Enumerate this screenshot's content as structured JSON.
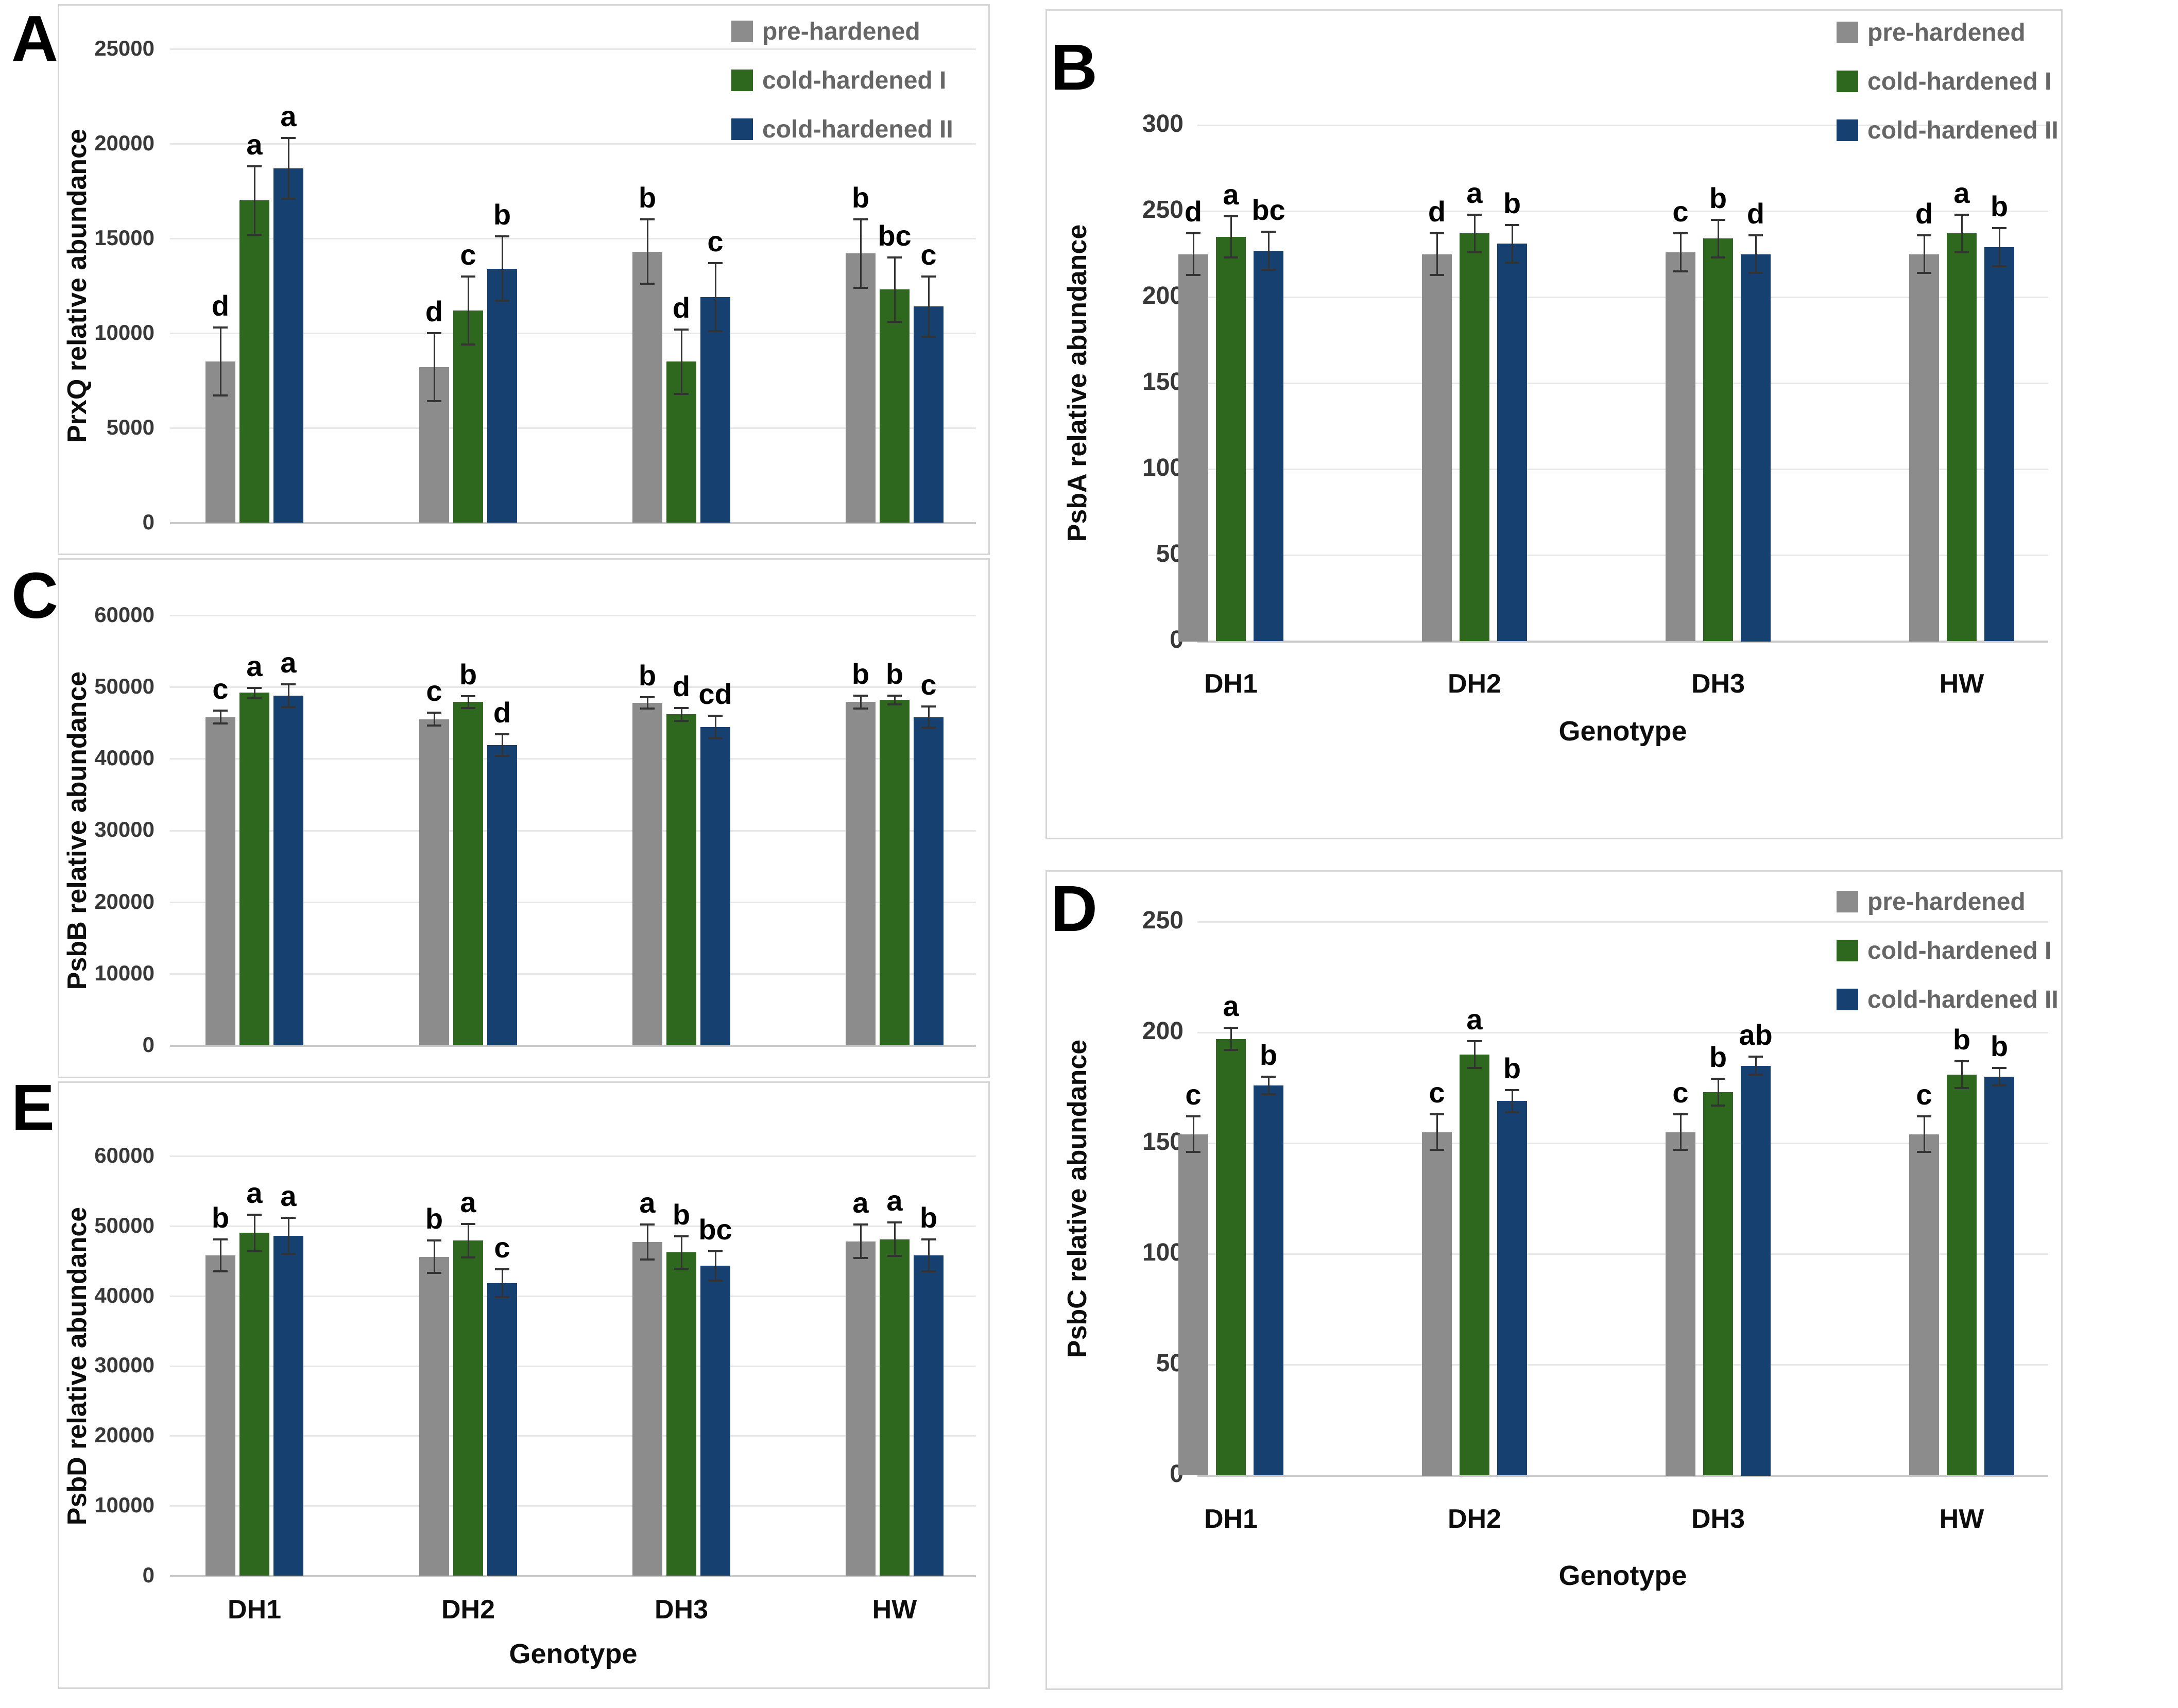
{
  "legend": {
    "items": [
      {
        "label": "pre-hardened",
        "color": "#8c8c8c"
      },
      {
        "label": "cold-hardened I",
        "color": "#2e671e"
      },
      {
        "label": "cold-hardened II",
        "color": "#15406f"
      }
    ]
  },
  "x_axis_title": "Genotype",
  "genotypes": [
    "DH1",
    "DH2",
    "DH3",
    "HW"
  ],
  "chart_data": [
    {
      "type": "bar",
      "panel_label": "A",
      "ylabel": "PrxQ relative abundance",
      "xlabel": "",
      "ylim": [
        0,
        25000
      ],
      "ytick_step": 5000,
      "ytick_labels": [
        "0",
        "5000",
        "10000",
        "15000",
        "20000",
        "25000"
      ],
      "categories": [
        "DH1",
        "DH2",
        "DH3",
        "HW"
      ],
      "grid": true,
      "legend_position": "top-right",
      "show_legend": true,
      "show_x_labels": false,
      "series": [
        {
          "name": "pre-hardened",
          "values": [
            8500,
            8200,
            14300,
            14200
          ],
          "errors": [
            1800,
            1800,
            1700,
            1800
          ],
          "letters": [
            "d",
            "d",
            "b",
            "b"
          ]
        },
        {
          "name": "cold-hardened I",
          "values": [
            17000,
            11200,
            8500,
            12300
          ],
          "errors": [
            1800,
            1800,
            1700,
            1700
          ],
          "letters": [
            "a",
            "c",
            "d",
            "bc"
          ]
        },
        {
          "name": "cold-hardened II",
          "values": [
            18700,
            13400,
            11900,
            11400
          ],
          "errors": [
            1600,
            1700,
            1800,
            1600
          ],
          "letters": [
            "a",
            "b",
            "c",
            "c"
          ]
        }
      ]
    },
    {
      "type": "bar",
      "panel_label": "B",
      "ylabel": "PsbA relative abundance",
      "xlabel": "Genotype",
      "ylim": [
        0,
        300
      ],
      "ytick_step": 50,
      "ytick_labels": [
        "0",
        "50",
        "100",
        "150",
        "200",
        "250",
        "300"
      ],
      "categories": [
        "DH1",
        "DH2",
        "DH3",
        "HW"
      ],
      "grid": true,
      "legend_position": "top-right",
      "show_legend": true,
      "show_x_labels": true,
      "series": [
        {
          "name": "pre-hardened",
          "values": [
            225,
            225,
            226,
            225
          ],
          "errors": [
            12,
            12,
            11,
            11
          ],
          "letters": [
            "d",
            "d",
            "c",
            "d"
          ]
        },
        {
          "name": "cold-hardened I",
          "values": [
            235,
            237,
            234,
            237
          ],
          "errors": [
            12,
            11,
            11,
            11
          ],
          "letters": [
            "a",
            "a",
            "b",
            "a"
          ]
        },
        {
          "name": "cold-hardened II",
          "values": [
            227,
            231,
            225,
            229
          ],
          "errors": [
            11,
            11,
            11,
            11
          ],
          "letters": [
            "bc",
            "b",
            "d",
            "b"
          ]
        }
      ]
    },
    {
      "type": "bar",
      "panel_label": "C",
      "ylabel": "PsbB relative abundance",
      "xlabel": "",
      "ylim": [
        0,
        60000
      ],
      "ytick_step": 10000,
      "ytick_labels": [
        "0",
        "10000",
        "20000",
        "30000",
        "40000",
        "50000",
        "60000"
      ],
      "categories": [
        "DH1",
        "DH2",
        "DH3",
        "HW"
      ],
      "grid": true,
      "legend_position": "none",
      "show_legend": false,
      "show_x_labels": false,
      "series": [
        {
          "name": "pre-hardened",
          "values": [
            45800,
            45500,
            47800,
            47900
          ],
          "errors": [
            900,
            900,
            800,
            900
          ],
          "letters": [
            "c",
            "c",
            "b",
            "b"
          ]
        },
        {
          "name": "cold-hardened I",
          "values": [
            49200,
            47900,
            46200,
            48200
          ],
          "errors": [
            700,
            800,
            900,
            600
          ],
          "letters": [
            "a",
            "b",
            "d",
            "b"
          ]
        },
        {
          "name": "cold-hardened II",
          "values": [
            48800,
            41900,
            44400,
            45800
          ],
          "errors": [
            1600,
            1500,
            1600,
            1500
          ],
          "letters": [
            "a",
            "d",
            "cd",
            "c"
          ]
        }
      ]
    },
    {
      "type": "bar",
      "panel_label": "D",
      "ylabel": "PsbC relative abundance",
      "xlabel": "Genotype",
      "ylim": [
        0,
        250
      ],
      "ytick_step": 50,
      "ytick_labels": [
        "0",
        "50",
        "100",
        "150",
        "200",
        "250"
      ],
      "categories": [
        "DH1",
        "DH2",
        "DH3",
        "HW"
      ],
      "grid": true,
      "legend_position": "top-right",
      "show_legend": true,
      "show_x_labels": true,
      "series": [
        {
          "name": "pre-hardened",
          "values": [
            154,
            155,
            155,
            154
          ],
          "errors": [
            8,
            8,
            8,
            8
          ],
          "letters": [
            "c",
            "c",
            "c",
            "c"
          ]
        },
        {
          "name": "cold-hardened I",
          "values": [
            197,
            190,
            173,
            181
          ],
          "errors": [
            5,
            6,
            6,
            6
          ],
          "letters": [
            "a",
            "a",
            "b",
            "b"
          ]
        },
        {
          "name": "cold-hardened II",
          "values": [
            176,
            169,
            185,
            180
          ],
          "errors": [
            4,
            5,
            4,
            4
          ],
          "letters": [
            "b",
            "b",
            "ab",
            "b"
          ]
        }
      ]
    },
    {
      "type": "bar",
      "panel_label": "E",
      "ylabel": "PsbD relative abundance",
      "xlabel": "Genotype",
      "ylim": [
        0,
        60000
      ],
      "ytick_step": 10000,
      "ytick_labels": [
        "0",
        "10000",
        "20000",
        "30000",
        "40000",
        "50000",
        "60000"
      ],
      "categories": [
        "DH1",
        "DH2",
        "DH3",
        "HW"
      ],
      "grid": true,
      "legend_position": "none",
      "show_legend": false,
      "show_x_labels": true,
      "series": [
        {
          "name": "pre-hardened",
          "values": [
            45800,
            45600,
            47700,
            47800
          ],
          "errors": [
            2300,
            2300,
            2500,
            2400
          ],
          "letters": [
            "b",
            "b",
            "a",
            "a"
          ]
        },
        {
          "name": "cold-hardened I",
          "values": [
            49000,
            47900,
            46200,
            48100
          ],
          "errors": [
            2600,
            2400,
            2300,
            2400
          ],
          "letters": [
            "a",
            "a",
            "b",
            "a"
          ]
        },
        {
          "name": "cold-hardened II",
          "values": [
            48600,
            41800,
            44300,
            45800
          ],
          "errors": [
            2600,
            2000,
            2100,
            2300
          ],
          "letters": [
            "a",
            "c",
            "bc",
            "b"
          ]
        }
      ]
    }
  ]
}
